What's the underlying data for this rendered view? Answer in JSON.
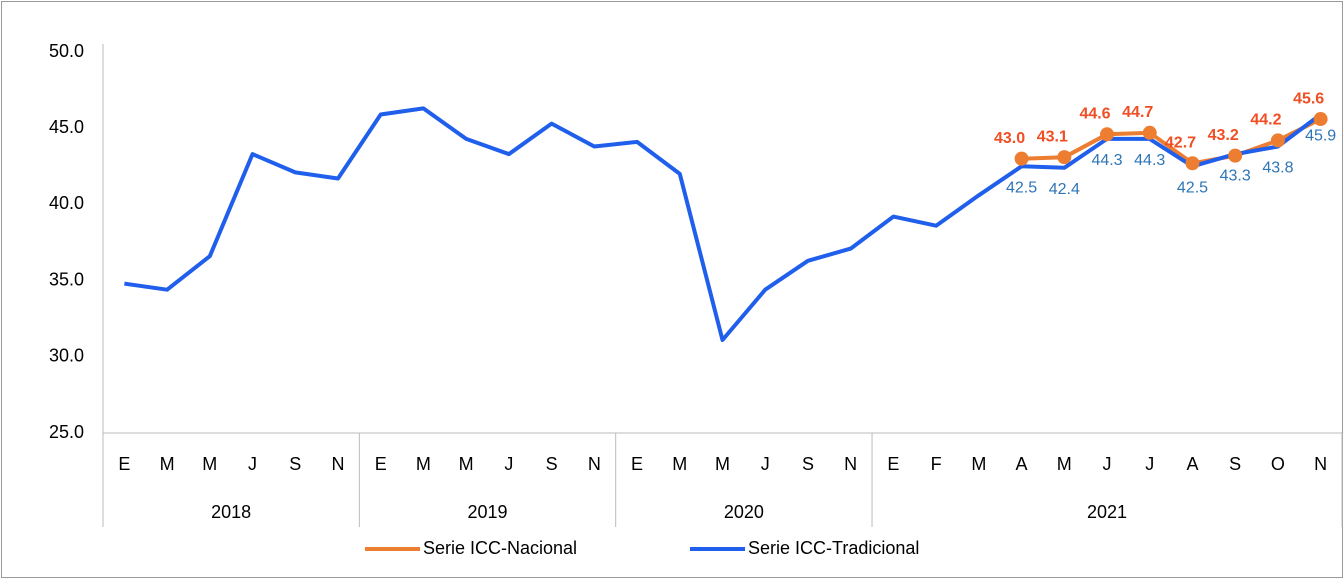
{
  "chart_data": {
    "type": "line",
    "category_groups": [
      {
        "label": "2018",
        "categories": [
          "E",
          "M",
          "M",
          "J",
          "S",
          "N"
        ]
      },
      {
        "label": "2019",
        "categories": [
          "E",
          "M",
          "M",
          "J",
          "S",
          "N"
        ]
      },
      {
        "label": "2020",
        "categories": [
          "E",
          "M",
          "M",
          "J",
          "S",
          "N"
        ]
      },
      {
        "label": "2021",
        "categories": [
          "E",
          "F",
          "M",
          "A",
          "M",
          "J",
          "J",
          "A",
          "S",
          "O",
          "N"
        ]
      }
    ],
    "series": [
      {
        "name": "Serie ICC-Nacional",
        "color": "#ED7D31",
        "label_color": "#F04E23",
        "markers": true,
        "values": [
          null,
          null,
          null,
          null,
          null,
          null,
          null,
          null,
          null,
          null,
          null,
          null,
          null,
          null,
          null,
          null,
          null,
          null,
          null,
          null,
          null,
          43.0,
          43.1,
          44.6,
          44.7,
          42.7,
          43.2,
          44.2,
          45.6
        ],
        "value_labels": [
          null,
          null,
          null,
          null,
          null,
          null,
          null,
          null,
          null,
          null,
          null,
          null,
          null,
          null,
          null,
          null,
          null,
          null,
          null,
          null,
          null,
          "43.0",
          "43.1",
          "44.6",
          "44.7",
          "42.7",
          "43.2",
          "44.2",
          "45.6"
        ]
      },
      {
        "name": "Serie ICC-Tradicional",
        "color": "#1F5FEB",
        "label_color": "#2E75B6",
        "markers": false,
        "values": [
          34.8,
          34.4,
          36.6,
          43.3,
          42.1,
          41.7,
          45.9,
          46.3,
          44.3,
          43.3,
          45.3,
          43.8,
          44.1,
          42.0,
          31.1,
          34.4,
          36.3,
          37.1,
          39.2,
          38.6,
          40.6,
          42.5,
          42.4,
          44.3,
          44.3,
          42.5,
          43.3,
          43.8,
          45.9
        ],
        "value_labels": [
          null,
          null,
          null,
          null,
          null,
          null,
          null,
          null,
          null,
          null,
          null,
          null,
          null,
          null,
          null,
          null,
          null,
          null,
          null,
          null,
          null,
          "42.5",
          "42.4",
          "44.3",
          "44.3",
          "42.5",
          "43.3",
          "43.8",
          "45.9"
        ]
      }
    ],
    "ylim": [
      25,
      50
    ],
    "yticks": [
      {
        "value": 25,
        "label": "25.0"
      },
      {
        "value": 30,
        "label": "30.0"
      },
      {
        "value": 35,
        "label": "35.0"
      },
      {
        "value": 40,
        "label": "40.0"
      },
      {
        "value": 45,
        "label": "45.0"
      },
      {
        "value": 50,
        "label": "50.0"
      }
    ],
    "legend": "bottom"
  }
}
